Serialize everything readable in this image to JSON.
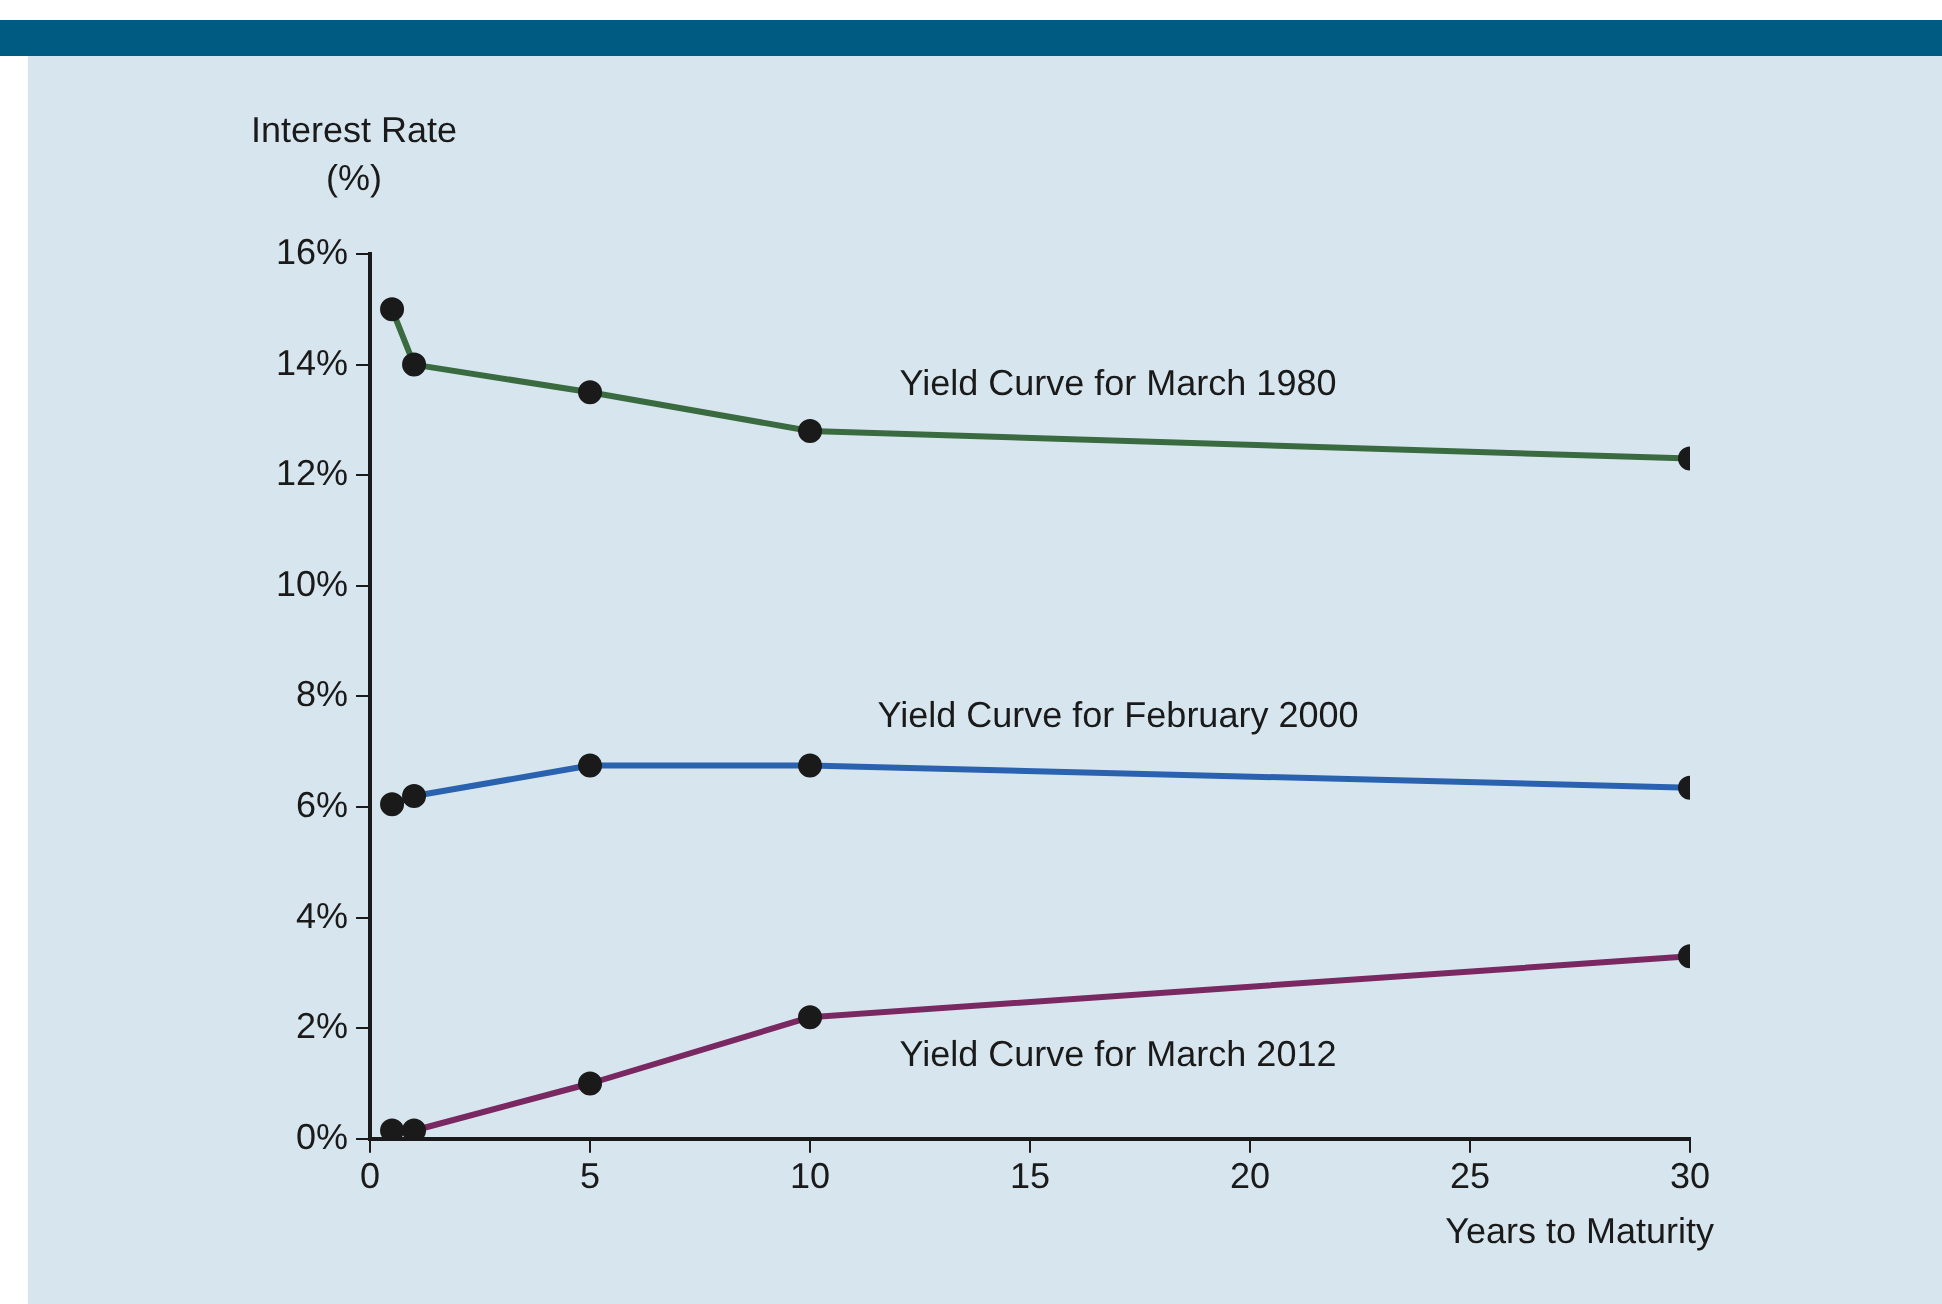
{
  "chart_data": {
    "type": "line",
    "ylabel": "Interest Rate\n(%)",
    "xlabel": "Years to Maturity",
    "xlim": [
      0,
      30
    ],
    "xticks": [
      0,
      5,
      10,
      15,
      20,
      25,
      30
    ],
    "ylim": [
      0,
      16
    ],
    "yticks": [
      {
        "value": 0,
        "label": "0%"
      },
      {
        "value": 2,
        "label": "2%"
      },
      {
        "value": 4,
        "label": "4%"
      },
      {
        "value": 6,
        "label": "6%"
      },
      {
        "value": 8,
        "label": "8%"
      },
      {
        "value": 10,
        "label": "10%"
      },
      {
        "value": 12,
        "label": "12%"
      },
      {
        "value": 14,
        "label": "14%"
      },
      {
        "value": 16,
        "label": "16%"
      }
    ],
    "x": [
      0.5,
      1,
      5,
      10,
      30
    ],
    "series": [
      {
        "name": "Yield Curve for March 1980",
        "color": "#3a6b40",
        "values": [
          15.0,
          14.0,
          13.5,
          12.8,
          12.3
        ]
      },
      {
        "name": "Yield Curve for February 2000",
        "color": "#2a62b0",
        "values": [
          6.05,
          6.2,
          6.75,
          6.75,
          6.35
        ]
      },
      {
        "name": "Yield Curve for March 2012",
        "color": "#7a2861",
        "values": [
          0.15,
          0.15,
          1.0,
          2.2,
          3.3
        ]
      }
    ],
    "marker": "circle",
    "grid": false,
    "legend": false
  }
}
